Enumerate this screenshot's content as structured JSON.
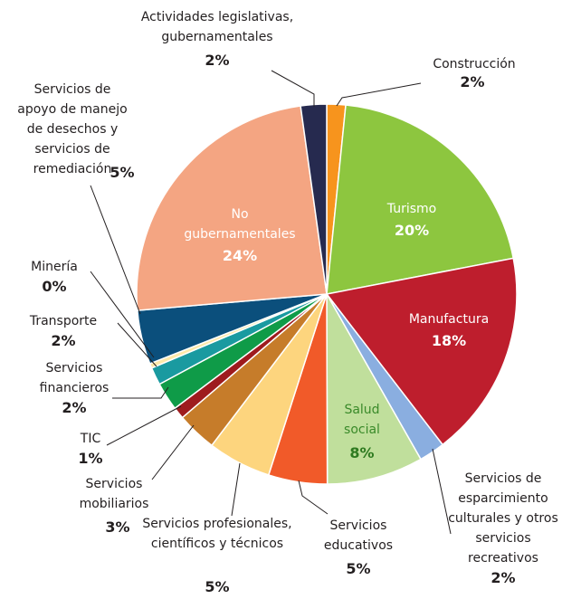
{
  "chart_data": {
    "type": "pie",
    "categories": [
      "Construcción",
      "Turismo",
      "Manufactura",
      "Servicios de esparcimiento culturales y otros servicios recreativos",
      "Salud social",
      "Servicios educativos",
      "Servicios profesionales, científicos y técnicos",
      "Servicios mobiliarios",
      "TIC",
      "Servicios financieros",
      "Transporte",
      "Minería",
      "Servicios de apoyo de manejo de desechos y servicios de remediación",
      "No gubernamentales",
      "Actividades legislativas, gubernamentales"
    ],
    "values": [
      1.6,
      20.4,
      17.6,
      2.2,
      8.2,
      5,
      5.4,
      3.4,
      1,
      2.4,
      1.5,
      0.4,
      4.6,
      24.2,
      2.2
    ],
    "value_labels": [
      "2%",
      "20%",
      "18%",
      "2%",
      "8%",
      "5%",
      "5%",
      "3%",
      "1%",
      "2%",
      "2%",
      "0%",
      "5%",
      "24%",
      "2%"
    ],
    "colors": [
      "#f7941d",
      "#8dc63f",
      "#be1e2d",
      "#8aaee0",
      "#c0df9c",
      "#f15a29",
      "#fdd57e",
      "#c67c2a",
      "#9e1b1e",
      "#0f9b48",
      "#1a9aa0",
      "#fde9a9",
      "#0b4f7c",
      "#f4a582",
      "#262a4f"
    ]
  }
}
